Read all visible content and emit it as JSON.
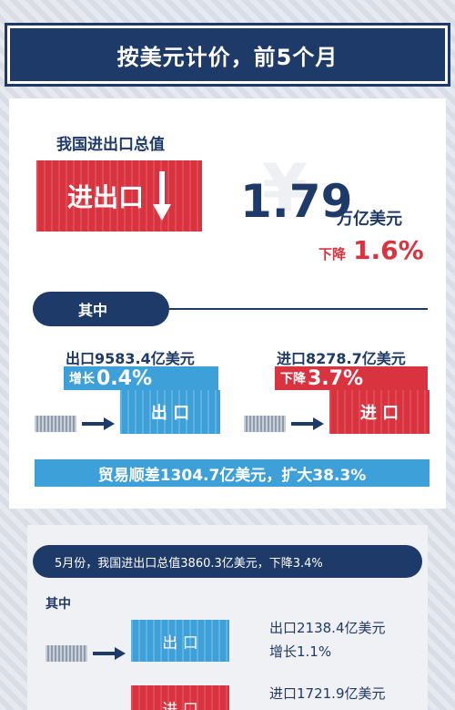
{
  "banner": {
    "title": "按美元计价，前5个月"
  },
  "summary": {
    "heading": "我国进出口总值",
    "container_label": "进出口",
    "value": "1.79",
    "unit": "万亿美元",
    "change_label": "下降",
    "change_value": "1.6%"
  },
  "among": {
    "label": "其中"
  },
  "export": {
    "title": "出口9583.4亿美元",
    "change_label": "增长",
    "change_value": "0.4%",
    "container_label": "出 口"
  },
  "import": {
    "title": "进口8278.7亿美元",
    "change_label": "下降",
    "change_value": "3.7%",
    "container_label": "进 口"
  },
  "surplus": {
    "text": "贸易顺差1304.7亿美元，扩大38.3%"
  },
  "may": {
    "headline": "5月份，我国进出口总值3860.3亿美元，下降3.4%",
    "among_label": "其中",
    "export_container": "出 口",
    "export_title": "出口2138.4亿美元",
    "export_change": "增长1.1%",
    "import_container": "进 口",
    "import_title": "进口1721.9亿美元"
  },
  "colors": {
    "navy": "#1e3a68",
    "red": "#d8333f",
    "blue": "#3ea0d9"
  }
}
